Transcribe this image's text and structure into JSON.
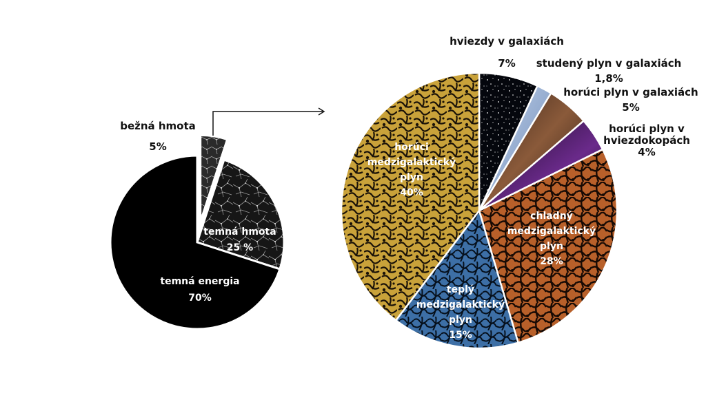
{
  "chart_data": [
    {
      "type": "pie",
      "title": "",
      "slices": [
        {
          "label": "bežná hmota",
          "value_label": "5%",
          "value": 5,
          "color": "#2a2a2a",
          "exploded": true
        },
        {
          "label": "temná hmota",
          "value_label": "25 %",
          "value": 25,
          "color": "#1c1c1c",
          "exploded": false
        },
        {
          "label": "temná energia",
          "value_label": "70%",
          "value": 70,
          "color": "#000000",
          "exploded": false
        }
      ]
    },
    {
      "type": "pie",
      "title": "",
      "slices": [
        {
          "label": "hviezdy v galaxiách",
          "value_label": "7%",
          "value": 7,
          "color": "#05070d"
        },
        {
          "label": "studený plyn v galaxiách",
          "value_label": "1,8%",
          "value": 1.8,
          "color": "#8fa8cf"
        },
        {
          "label": "horúci plyn v galaxiách",
          "value_label": "5%",
          "value": 5,
          "color": "#5a3a2a"
        },
        {
          "label": "horúci plyn v hviezdokopách",
          "value_label": "4%",
          "value": 4,
          "color": "#4a1f5e"
        },
        {
          "label": "chladný medzigalaktický plyn",
          "value_label": "28%",
          "value": 28,
          "color": "#b8602a"
        },
        {
          "label": "teplý medzigalaktický plyn",
          "value_label": "15%",
          "value": 15,
          "color": "#3d6fa6"
        },
        {
          "label": "horúci medzigalaktický plyn",
          "value_label": "40%",
          "value": 40,
          "color": "#c9a23a"
        }
      ]
    }
  ],
  "labels": {
    "normal_matter": {
      "lines": [
        "bežná hmota"
      ],
      "pct": "5%"
    },
    "dark_matter": {
      "lines": [
        "temná hmota"
      ],
      "pct": "25 %"
    },
    "dark_energy": {
      "lines": [
        "temná energia"
      ],
      "pct": "70%"
    },
    "stars": {
      "lines": [
        "hviezdy v galaxiách"
      ],
      "pct": "7%"
    },
    "cold_gas_gal": {
      "lines": [
        "studený plyn v galaxiách"
      ],
      "pct": "1,8%"
    },
    "hot_gas_gal": {
      "lines": [
        "horúci plyn v galaxiách"
      ],
      "pct": "5%"
    },
    "hot_gas_clusters": {
      "lines": [
        "horúci plyn v",
        "hviezdokopách"
      ],
      "pct": "4%"
    },
    "cold_igm": {
      "lines": [
        "chladný",
        "medzigalaktický",
        "plyn"
      ],
      "pct": "28%"
    },
    "warm_igm": {
      "lines": [
        "teplý",
        "medzigalaktický",
        "plyn"
      ],
      "pct": "15%"
    },
    "hot_igm": {
      "lines": [
        "horúci",
        "medzigalaktický",
        "plyn"
      ],
      "pct": "40%"
    }
  }
}
